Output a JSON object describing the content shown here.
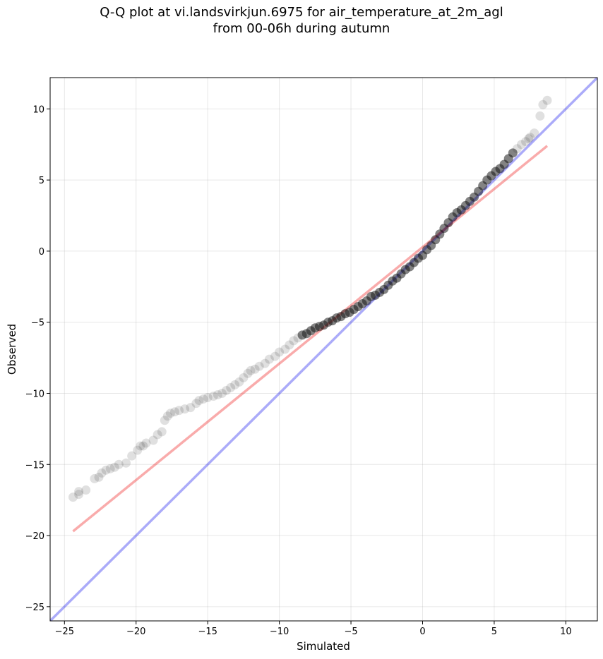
{
  "title_line1": "Q-Q plot at vi.landsvirkjun.6975 for air_temperature_at_2m_agl",
  "title_line2": "from 00-06h during autumn",
  "chart_data": {
    "type": "scatter",
    "xlabel": "Simulated",
    "ylabel": "Observed",
    "xlim": [
      -26,
      12.2
    ],
    "ylim": [
      -26,
      12.2
    ],
    "xticks": [
      -25,
      -20,
      -15,
      -10,
      -5,
      0,
      5,
      10
    ],
    "yticks": [
      -25,
      -20,
      -15,
      -10,
      -5,
      0,
      5,
      10
    ],
    "grid": true,
    "series": [
      {
        "kind": "points",
        "color": "#000000",
        "x": [
          -24.4,
          -24.0,
          -24.0,
          -23.5,
          -22.9,
          -22.6,
          -22.4,
          -22.1,
          -21.8,
          -21.5,
          -21.2,
          -20.7,
          -20.3,
          -19.9,
          -19.7,
          -19.5,
          -19.3,
          -18.8,
          -18.5,
          -18.2,
          -18.0,
          -17.8,
          -17.6,
          -17.3,
          -17.0,
          -16.6,
          -16.2,
          -15.8,
          -15.6,
          -15.3,
          -15.0,
          -14.6,
          -14.3,
          -14.0,
          -13.7,
          -13.4,
          -13.1,
          -12.8,
          -12.5,
          -12.2,
          -12.0,
          -11.7,
          -11.4,
          -11.0,
          -10.7,
          -10.3,
          -10.0,
          -9.6,
          -9.3,
          -9.0,
          -8.7,
          -8.4,
          -8.1,
          -7.8,
          -7.5,
          -7.2,
          -6.9,
          -6.6,
          -6.3,
          -6.0,
          -5.7,
          -5.4,
          -5.1,
          -4.8,
          -4.5,
          -4.2,
          -3.9,
          -3.6,
          -3.3,
          -3.0,
          -2.7,
          -2.4,
          -2.1,
          -1.8,
          -1.5,
          -1.2,
          -0.9,
          -0.6,
          -0.3,
          0.0,
          0.3,
          0.6,
          0.9,
          1.2,
          1.5,
          1.8,
          2.1,
          2.4,
          2.7,
          3.0,
          3.3,
          3.6,
          3.9,
          4.2,
          4.5,
          4.8,
          5.1,
          5.4,
          5.7,
          6.0,
          6.3,
          6.6,
          6.9,
          7.2,
          7.4,
          7.5,
          7.8,
          8.2,
          8.4,
          8.7
        ],
        "y": [
          -17.3,
          -17.1,
          -16.9,
          -16.8,
          -16.0,
          -15.9,
          -15.6,
          -15.4,
          -15.3,
          -15.2,
          -15.0,
          -14.9,
          -14.4,
          -14.0,
          -13.7,
          -13.7,
          -13.5,
          -13.3,
          -12.9,
          -12.7,
          -11.9,
          -11.6,
          -11.4,
          -11.3,
          -11.2,
          -11.1,
          -11.0,
          -10.7,
          -10.5,
          -10.4,
          -10.3,
          -10.2,
          -10.1,
          -10.0,
          -9.8,
          -9.6,
          -9.4,
          -9.2,
          -8.9,
          -8.6,
          -8.4,
          -8.3,
          -8.1,
          -7.9,
          -7.6,
          -7.4,
          -7.1,
          -6.9,
          -6.6,
          -6.3,
          -6.1,
          -5.9,
          -5.8,
          -5.6,
          -5.4,
          -5.3,
          -5.2,
          -5.0,
          -4.9,
          -4.7,
          -4.6,
          -4.4,
          -4.3,
          -4.1,
          -3.9,
          -3.7,
          -3.5,
          -3.2,
          -3.1,
          -2.9,
          -2.7,
          -2.4,
          -2.1,
          -1.9,
          -1.6,
          -1.3,
          -1.1,
          -0.8,
          -0.5,
          -0.3,
          0.1,
          0.4,
          0.8,
          1.2,
          1.6,
          2.0,
          2.4,
          2.7,
          2.9,
          3.2,
          3.5,
          3.8,
          4.2,
          4.6,
          5.0,
          5.3,
          5.6,
          5.8,
          6.1,
          6.5,
          6.9,
          7.2,
          7.5,
          7.7,
          7.9,
          8.0,
          8.3,
          9.5,
          10.3,
          10.6
        ]
      },
      {
        "kind": "line",
        "color": "#0000ee",
        "x": [
          -26,
          12.2
        ],
        "y": [
          -26,
          12.2
        ]
      },
      {
        "kind": "line",
        "color": "#ee0000",
        "x": [
          -24.4,
          8.7
        ],
        "y": [
          -19.7,
          7.4
        ]
      }
    ]
  }
}
